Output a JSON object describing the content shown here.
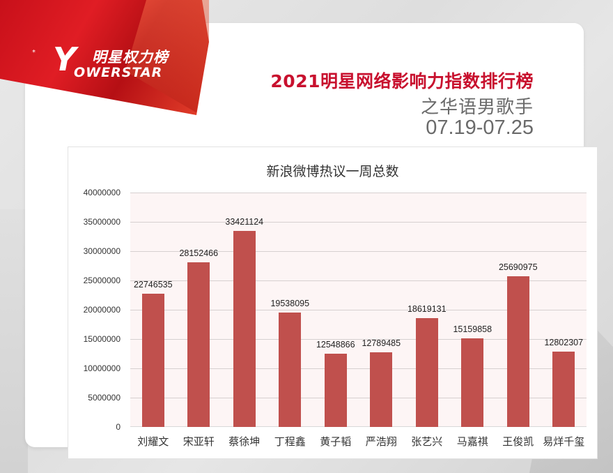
{
  "header": {
    "logo_cn": "明星权力榜",
    "logo_y": "Y",
    "logo_en": "OWERSTAR",
    "logo_star": "*",
    "title": "2021明星网络影响力指数排行榜",
    "subtitle": "之华语男歌手",
    "date_range": "07.19-07.25"
  },
  "colors": {
    "brand_red": "#c8102e",
    "bar": "#c0504d",
    "plot_bg": "#fdf5f5"
  },
  "chart_data": {
    "type": "bar",
    "title": "新浪微博热议一周总数",
    "xlabel": "",
    "ylabel": "",
    "ylim": [
      0,
      40000000
    ],
    "yticks": [
      "40000000",
      "35000000",
      "30000000",
      "25000000",
      "20000000",
      "15000000",
      "10000000",
      "5000000",
      "0"
    ],
    "grid": true,
    "legend": "none",
    "categories": [
      "刘耀文",
      "宋亚轩",
      "蔡徐坤",
      "丁程鑫",
      "黄子韬",
      "严浩翔",
      "张艺兴",
      "马嘉祺",
      "王俊凯",
      "易烊千玺"
    ],
    "values": [
      22746535,
      28152466,
      33421124,
      19538095,
      12548866,
      12789485,
      18619131,
      15159858,
      25690975,
      12802307
    ],
    "value_labels": [
      "22746535",
      "28152466",
      "33421124",
      "19538095",
      "12548866",
      "12789485",
      "18619131",
      "15159858",
      "25690975",
      "12802307"
    ]
  }
}
